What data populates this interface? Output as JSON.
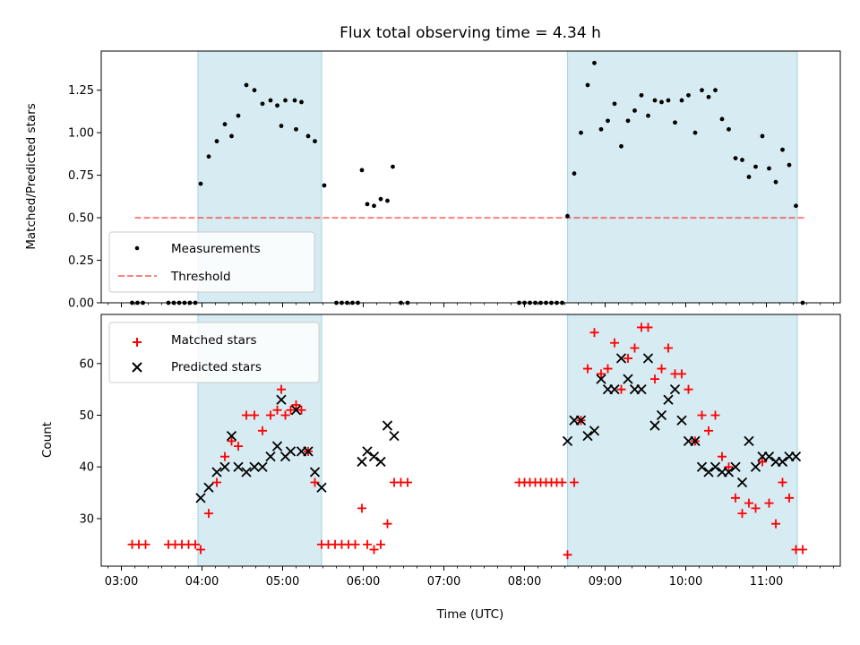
{
  "chart_data": {
    "title": "Flux total observing time = 4.34 h",
    "xlabel": "Time (UTC)",
    "x_ticks": [
      "03:00",
      "04:00",
      "05:00",
      "06:00",
      "07:00",
      "08:00",
      "09:00",
      "10:00",
      "11:00"
    ],
    "x_range": [
      "02:45",
      "11:55"
    ],
    "colors": {
      "span": "#add8e6",
      "measurement": "#000000",
      "threshold": "#ff0000",
      "matched": "#ff0000",
      "predicted": "#000000"
    },
    "spans": [
      [
        "03:57",
        "05:29"
      ],
      [
        "08:32",
        "11:23"
      ]
    ],
    "panels": [
      {
        "type": "scatter",
        "ylabel": "Matched/Predicted stars",
        "ylim": [
          0,
          1.48
        ],
        "y_ticks": [
          "0.00",
          "0.25",
          "0.50",
          "0.75",
          "1.00",
          "1.25"
        ],
        "legend_position": "lower-left",
        "series": [
          {
            "name": "Measurements",
            "marker": "dot",
            "points": [
              [
                "03:08",
                0
              ],
              [
                "03:12",
                0
              ],
              [
                "03:16",
                0
              ],
              [
                "03:35",
                0
              ],
              [
                "03:39",
                0
              ],
              [
                "03:43",
                0
              ],
              [
                "03:47",
                0
              ],
              [
                "03:51",
                0
              ],
              [
                "03:55",
                0
              ],
              [
                "03:59",
                0.7
              ],
              [
                "04:05",
                0.86
              ],
              [
                "04:11",
                0.95
              ],
              [
                "04:17",
                1.05
              ],
              [
                "04:22",
                0.98
              ],
              [
                "04:27",
                1.1
              ],
              [
                "04:33",
                1.28
              ],
              [
                "04:39",
                1.25
              ],
              [
                "04:45",
                1.17
              ],
              [
                "04:51",
                1.19
              ],
              [
                "04:56",
                1.16
              ],
              [
                "05:02",
                1.19
              ],
              [
                "04:59",
                1.04
              ],
              [
                "05:09",
                1.19
              ],
              [
                "05:10",
                1.02
              ],
              [
                "05:14",
                1.18
              ],
              [
                "05:19",
                0.98
              ],
              [
                "05:24",
                0.95
              ],
              [
                "05:31",
                0.69
              ],
              [
                "05:40",
                0
              ],
              [
                "05:44",
                0
              ],
              [
                "05:48",
                0
              ],
              [
                "05:52",
                0
              ],
              [
                "05:56",
                0
              ],
              [
                "05:59",
                0.78
              ],
              [
                "06:03",
                0.58
              ],
              [
                "06:08",
                0.57
              ],
              [
                "06:13",
                0.61
              ],
              [
                "06:18",
                0.6
              ],
              [
                "06:22",
                0.8
              ],
              [
                "06:28",
                0
              ],
              [
                "06:33",
                0
              ],
              [
                "07:56",
                0
              ],
              [
                "08:00",
                0
              ],
              [
                "08:04",
                0
              ],
              [
                "08:08",
                0
              ],
              [
                "08:12",
                0
              ],
              [
                "08:16",
                0
              ],
              [
                "08:20",
                0
              ],
              [
                "08:24",
                0
              ],
              [
                "08:28",
                0
              ],
              [
                "08:32",
                0.51
              ],
              [
                "08:37",
                0.76
              ],
              [
                "08:42",
                1.0
              ],
              [
                "08:47",
                1.28
              ],
              [
                "08:52",
                1.41
              ],
              [
                "08:57",
                1.02
              ],
              [
                "09:02",
                1.07
              ],
              [
                "09:07",
                1.17
              ],
              [
                "09:12",
                0.92
              ],
              [
                "09:17",
                1.07
              ],
              [
                "09:22",
                1.13
              ],
              [
                "09:27",
                1.22
              ],
              [
                "09:32",
                1.1
              ],
              [
                "09:37",
                1.19
              ],
              [
                "09:42",
                1.18
              ],
              [
                "09:47",
                1.19
              ],
              [
                "09:52",
                1.06
              ],
              [
                "09:57",
                1.19
              ],
              [
                "10:02",
                1.22
              ],
              [
                "10:07",
                1.0
              ],
              [
                "10:12",
                1.25
              ],
              [
                "10:17",
                1.21
              ],
              [
                "10:22",
                1.25
              ],
              [
                "10:27",
                1.08
              ],
              [
                "10:32",
                1.02
              ],
              [
                "10:37",
                0.85
              ],
              [
                "10:42",
                0.84
              ],
              [
                "10:47",
                0.74
              ],
              [
                "10:52",
                0.8
              ],
              [
                "10:57",
                0.98
              ],
              [
                "11:02",
                0.79
              ],
              [
                "11:07",
                0.71
              ],
              [
                "11:12",
                0.9
              ],
              [
                "11:17",
                0.81
              ],
              [
                "11:22",
                0.57
              ],
              [
                "11:27",
                0
              ]
            ]
          },
          {
            "name": "Threshold",
            "style": "dashed",
            "points": [
              [
                "03:10",
                0.5
              ],
              [
                "11:30",
                0.5
              ]
            ]
          }
        ]
      },
      {
        "type": "scatter",
        "ylabel": "Count",
        "ylim": [
          20.8,
          69.5
        ],
        "y_ticks": [
          "30",
          "40",
          "50",
          "60"
        ],
        "legend_position": "upper-left",
        "series": [
          {
            "name": "Matched stars",
            "marker": "plus",
            "points": [
              [
                "03:08",
                25
              ],
              [
                "03:13",
                25
              ],
              [
                "03:18",
                25
              ],
              [
                "03:35",
                25
              ],
              [
                "03:40",
                25
              ],
              [
                "03:45",
                25
              ],
              [
                "03:50",
                25
              ],
              [
                "03:55",
                25
              ],
              [
                "03:59",
                24
              ],
              [
                "04:05",
                31
              ],
              [
                "04:11",
                37
              ],
              [
                "04:17",
                42
              ],
              [
                "04:22",
                45
              ],
              [
                "04:27",
                44
              ],
              [
                "04:33",
                50
              ],
              [
                "04:39",
                50
              ],
              [
                "04:45",
                47
              ],
              [
                "04:51",
                50
              ],
              [
                "04:56",
                51
              ],
              [
                "05:02",
                50
              ],
              [
                "04:59",
                55
              ],
              [
                "05:06",
                51
              ],
              [
                "05:10",
                52
              ],
              [
                "05:14",
                51
              ],
              [
                "05:19",
                43
              ],
              [
                "05:24",
                37
              ],
              [
                "05:29",
                25
              ],
              [
                "05:34",
                25
              ],
              [
                "05:39",
                25
              ],
              [
                "05:44",
                25
              ],
              [
                "05:49",
                25
              ],
              [
                "05:54",
                25
              ],
              [
                "05:59",
                32
              ],
              [
                "06:03",
                25
              ],
              [
                "06:08",
                24
              ],
              [
                "06:13",
                25
              ],
              [
                "06:18",
                29
              ],
              [
                "06:23",
                37
              ],
              [
                "06:28",
                37
              ],
              [
                "06:33",
                37
              ],
              [
                "07:56",
                37
              ],
              [
                "08:00",
                37
              ],
              [
                "08:04",
                37
              ],
              [
                "08:08",
                37
              ],
              [
                "08:12",
                37
              ],
              [
                "08:16",
                37
              ],
              [
                "08:20",
                37
              ],
              [
                "08:24",
                37
              ],
              [
                "08:28",
                37
              ],
              [
                "08:32",
                23
              ],
              [
                "08:37",
                37
              ],
              [
                "08:42",
                49
              ],
              [
                "08:47",
                59
              ],
              [
                "08:52",
                66
              ],
              [
                "08:57",
                58
              ],
              [
                "09:02",
                59
              ],
              [
                "09:07",
                64
              ],
              [
                "09:12",
                55
              ],
              [
                "09:17",
                61
              ],
              [
                "09:22",
                63
              ],
              [
                "09:27",
                67
              ],
              [
                "09:32",
                67
              ],
              [
                "09:37",
                57
              ],
              [
                "09:42",
                59
              ],
              [
                "09:47",
                63
              ],
              [
                "09:52",
                58
              ],
              [
                "09:57",
                58
              ],
              [
                "10:02",
                55
              ],
              [
                "10:07",
                45
              ],
              [
                "10:12",
                50
              ],
              [
                "10:17",
                47
              ],
              [
                "10:22",
                50
              ],
              [
                "10:27",
                42
              ],
              [
                "10:32",
                40
              ],
              [
                "10:37",
                34
              ],
              [
                "10:42",
                31
              ],
              [
                "10:47",
                33
              ],
              [
                "10:52",
                32
              ],
              [
                "10:57",
                41
              ],
              [
                "11:02",
                33
              ],
              [
                "11:07",
                29
              ],
              [
                "11:12",
                37
              ],
              [
                "11:17",
                34
              ],
              [
                "11:22",
                24
              ],
              [
                "11:27",
                24
              ]
            ]
          },
          {
            "name": "Predicted stars",
            "marker": "x",
            "points": [
              [
                "03:59",
                34
              ],
              [
                "04:05",
                36
              ],
              [
                "04:11",
                39
              ],
              [
                "04:17",
                40
              ],
              [
                "04:22",
                46
              ],
              [
                "04:27",
                40
              ],
              [
                "04:33",
                39
              ],
              [
                "04:39",
                40
              ],
              [
                "04:45",
                40
              ],
              [
                "04:51",
                42
              ],
              [
                "04:56",
                44
              ],
              [
                "05:02",
                42
              ],
              [
                "04:59",
                53
              ],
              [
                "05:06",
                43
              ],
              [
                "05:10",
                51
              ],
              [
                "05:14",
                43
              ],
              [
                "05:19",
                43
              ],
              [
                "05:24",
                39
              ],
              [
                "05:29",
                36
              ],
              [
                "05:59",
                41
              ],
              [
                "06:03",
                43
              ],
              [
                "06:08",
                42
              ],
              [
                "06:13",
                41
              ],
              [
                "06:18",
                48
              ],
              [
                "06:23",
                46
              ],
              [
                "08:32",
                45
              ],
              [
                "08:37",
                49
              ],
              [
                "08:42",
                49
              ],
              [
                "08:47",
                46
              ],
              [
                "08:52",
                47
              ],
              [
                "08:57",
                57
              ],
              [
                "09:02",
                55
              ],
              [
                "09:07",
                55
              ],
              [
                "09:12",
                61
              ],
              [
                "09:17",
                57
              ],
              [
                "09:22",
                55
              ],
              [
                "09:27",
                55
              ],
              [
                "09:32",
                61
              ],
              [
                "09:37",
                48
              ],
              [
                "09:42",
                50
              ],
              [
                "09:47",
                53
              ],
              [
                "09:52",
                55
              ],
              [
                "09:57",
                49
              ],
              [
                "10:02",
                45
              ],
              [
                "10:07",
                45
              ],
              [
                "10:12",
                40
              ],
              [
                "10:17",
                39
              ],
              [
                "10:22",
                40
              ],
              [
                "10:27",
                39
              ],
              [
                "10:32",
                39
              ],
              [
                "10:37",
                40
              ],
              [
                "10:42",
                37
              ],
              [
                "10:47",
                45
              ],
              [
                "10:52",
                40
              ],
              [
                "10:57",
                42
              ],
              [
                "11:02",
                42
              ],
              [
                "11:07",
                41
              ],
              [
                "11:12",
                41
              ],
              [
                "11:17",
                42
              ],
              [
                "11:22",
                42
              ]
            ]
          }
        ]
      }
    ]
  }
}
